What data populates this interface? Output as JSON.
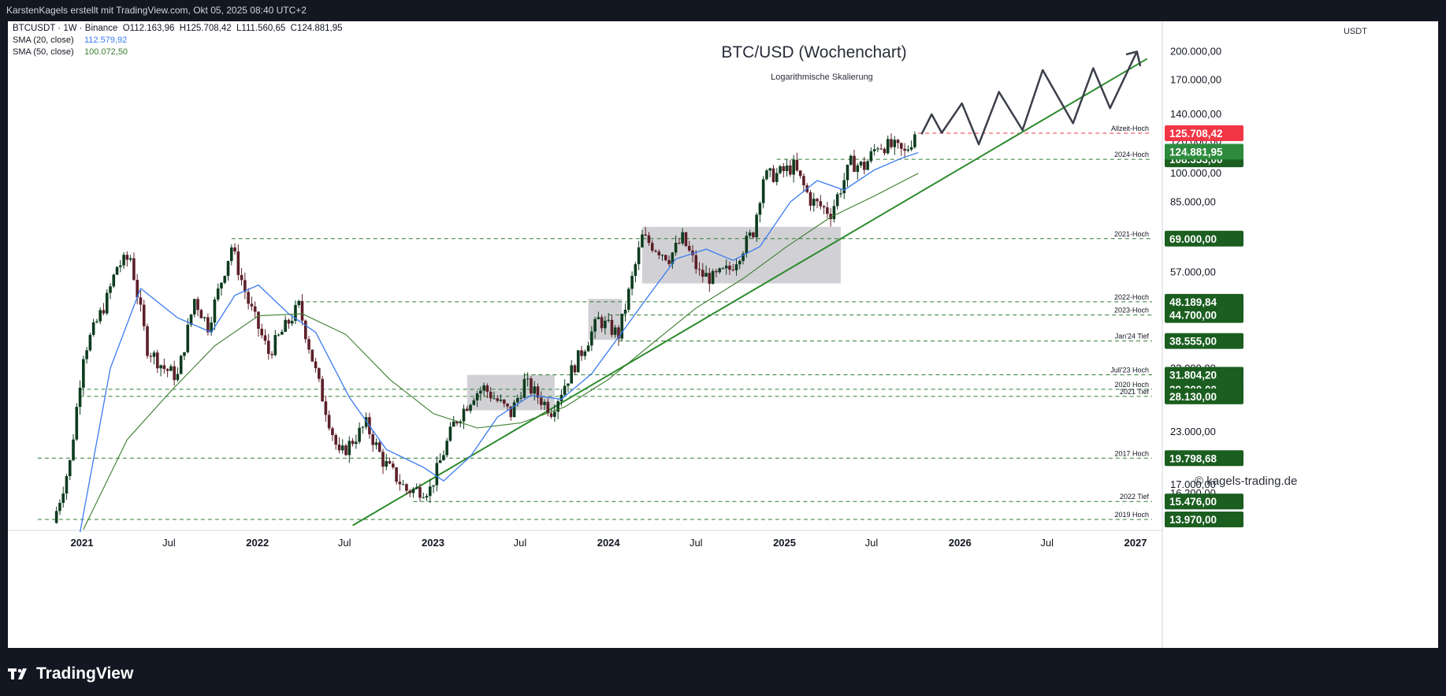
{
  "header": {
    "attribution": "KarstenKagels erstellt mit TradingView.com, Okt 05, 2025 08:40 UTC+2"
  },
  "legend": {
    "symbol_line": "BTCUSDT · 1W · Binance  O112.163,96  H125.708,42  L111.560,65  C124.881,95",
    "sma20_label": "SMA (20, close)",
    "sma20_value": "112.579,92",
    "sma50_label": "SMA (50, close)",
    "sma50_value": "100.072,50"
  },
  "footer": {
    "brand": "TradingView"
  },
  "colors": {
    "bull": "#0d3b1e",
    "bear": "#5c1f28",
    "sma20": "#3a7bf0",
    "sma50": "#3b7d2e",
    "trend": "#2e8b2e",
    "level_line": "#2e7d32",
    "level_box": "#1b5e20",
    "ath_red": "#f23645",
    "last_green": "#2e8b3e",
    "zone": "#c9c9ce",
    "projection": "#3b3f4a"
  },
  "chart_data": {
    "type": "candlestick",
    "title": "BTC/USD (Wochenchart)",
    "subtitle": "Logarithmische Skalierung",
    "scale": "log",
    "currency_label": "USDT",
    "watermark": "© kagels-trading.de",
    "y_ticks": [
      {
        "label": "200.000,00",
        "value": 200000
      },
      {
        "label": "170.000,00",
        "value": 170000
      },
      {
        "label": "140.000,00",
        "value": 140000
      },
      {
        "label": "120.000,00",
        "value": 120000
      },
      {
        "label": "100.000,00",
        "value": 100000
      },
      {
        "label": "85.000,00",
        "value": 85000
      },
      {
        "label": "57.000,00",
        "value": 57000
      },
      {
        "label": "33.000,00",
        "value": 33000
      },
      {
        "label": "23.000,00",
        "value": 23000
      },
      {
        "label": "17.000,00",
        "value": 17000
      },
      {
        "label": "16.200,00",
        "value": 16200
      }
    ],
    "x_ticks": [
      {
        "label": "2021",
        "date": "2021-01-01",
        "bold": true
      },
      {
        "label": "Jul",
        "date": "2021-07-01",
        "bold": false
      },
      {
        "label": "2022",
        "date": "2022-01-01",
        "bold": true
      },
      {
        "label": "Jul",
        "date": "2022-07-01",
        "bold": false
      },
      {
        "label": "2023",
        "date": "2023-01-01",
        "bold": true
      },
      {
        "label": "Jul",
        "date": "2023-07-01",
        "bold": false
      },
      {
        "label": "2024",
        "date": "2024-01-01",
        "bold": true
      },
      {
        "label": "Jul",
        "date": "2024-07-01",
        "bold": false
      },
      {
        "label": "2025",
        "date": "2025-01-01",
        "bold": true
      },
      {
        "label": "Jul",
        "date": "2025-07-01",
        "bold": false
      },
      {
        "label": "2026",
        "date": "2026-01-01",
        "bold": true
      },
      {
        "label": "Jul",
        "date": "2026-07-01",
        "bold": false
      },
      {
        "label": "2027",
        "date": "2027-01-01",
        "bold": true
      }
    ],
    "levels": [
      {
        "label": "Allzeit-Hoch",
        "value": 125708.42,
        "badge": "125.708,42",
        "kind": "ath",
        "start": "2025-10-06"
      },
      {
        "label": "2024-Hoch",
        "value": 108353,
        "badge": "108.353,00",
        "kind": "level",
        "start": "2024-12-16"
      },
      {
        "label": "2021-Hoch",
        "value": 69000,
        "badge": "69.000,00",
        "kind": "level",
        "start": "2021-11-08"
      },
      {
        "label": "2022-Hoch",
        "value": 48189.84,
        "badge": "48.189,84",
        "kind": "level",
        "start": "2022-03-28"
      },
      {
        "label": "2023-Hoch",
        "value": 44700,
        "badge": "44.700,00",
        "kind": "level",
        "start": "2024-01-01"
      },
      {
        "label": "Jan'24 Tief",
        "value": 38555,
        "badge": "38.555,00",
        "kind": "level",
        "start": "2024-01-22"
      },
      {
        "label": "Juli'23 Hoch",
        "value": 31804.2,
        "badge": "31.804,20",
        "kind": "level",
        "start": "2023-07-10"
      },
      {
        "label": "2020 Hoch",
        "value": 29300,
        "badge": "29.300,00",
        "kind": "level",
        "start": "2020-12-28"
      },
      {
        "label": "2021 Tief",
        "value": 28130,
        "badge": "28.130,00",
        "kind": "level",
        "start": "2020-12-28"
      },
      {
        "label": "2017 Hoch",
        "value": 19798.68,
        "badge": "19.798,68",
        "kind": "level",
        "start": "2020-10-01"
      },
      {
        "label": "2022 Tief",
        "value": 15476,
        "badge": "15.476,00",
        "kind": "level",
        "start": "2022-11-21"
      },
      {
        "label": "2019 Hoch",
        "value": 13970,
        "badge": "13.970,00",
        "kind": "level",
        "start": "2020-10-01"
      }
    ],
    "last_price": {
      "value": 124881.95,
      "badge": "124.881,95"
    },
    "zones": [
      {
        "from": "2023-03-13",
        "to": "2023-09-11",
        "low": 26000,
        "high": 31800
      },
      {
        "from": "2023-11-20",
        "to": "2024-01-29",
        "low": 38800,
        "high": 49000
      },
      {
        "from": "2024-03-11",
        "to": "2025-04-28",
        "low": 53500,
        "high": 73800
      }
    ],
    "trendline": {
      "from": {
        "date": "2022-07-18",
        "value": 13500
      },
      "to": {
        "date": "2027-01-25",
        "value": 192000
      }
    },
    "projection": [
      {
        "date": "2025-10-13",
        "value": 125000
      },
      {
        "date": "2025-11-03",
        "value": 140000
      },
      {
        "date": "2025-11-24",
        "value": 126000
      },
      {
        "date": "2026-01-05",
        "value": 149000
      },
      {
        "date": "2026-02-09",
        "value": 118000
      },
      {
        "date": "2026-03-23",
        "value": 159000
      },
      {
        "date": "2026-05-11",
        "value": 128000
      },
      {
        "date": "2026-06-22",
        "value": 180000
      },
      {
        "date": "2026-08-24",
        "value": 133000
      },
      {
        "date": "2026-10-05",
        "value": 182000
      },
      {
        "date": "2026-11-09",
        "value": 145000
      },
      {
        "date": "2027-01-04",
        "value": 200000
      },
      {
        "date": "2026-12-14",
        "value": 197000
      },
      {
        "date": "2027-01-04",
        "value": 200000
      },
      {
        "date": "2027-01-11",
        "value": 184000
      }
    ],
    "price_path": [
      {
        "date": "2020-11-02",
        "value": 13700
      },
      {
        "date": "2020-12-07",
        "value": 19300
      },
      {
        "date": "2021-01-04",
        "value": 36000
      },
      {
        "date": "2021-02-22",
        "value": 49000
      },
      {
        "date": "2021-03-15",
        "value": 59000
      },
      {
        "date": "2021-04-12",
        "value": 62000
      },
      {
        "date": "2021-05-17",
        "value": 37000
      },
      {
        "date": "2021-06-21",
        "value": 33000
      },
      {
        "date": "2021-07-19",
        "value": 31500
      },
      {
        "date": "2021-08-23",
        "value": 49000
      },
      {
        "date": "2021-09-20",
        "value": 42000
      },
      {
        "date": "2021-11-08",
        "value": 66000
      },
      {
        "date": "2021-12-13",
        "value": 48000
      },
      {
        "date": "2022-01-24",
        "value": 36000
      },
      {
        "date": "2022-03-28",
        "value": 47000
      },
      {
        "date": "2022-05-09",
        "value": 30000
      },
      {
        "date": "2022-06-20",
        "value": 20000
      },
      {
        "date": "2022-08-15",
        "value": 24000
      },
      {
        "date": "2022-09-19",
        "value": 19500
      },
      {
        "date": "2022-11-07",
        "value": 16500
      },
      {
        "date": "2022-12-26",
        "value": 16600
      },
      {
        "date": "2023-02-13",
        "value": 24000
      },
      {
        "date": "2023-03-27",
        "value": 28500
      },
      {
        "date": "2023-04-17",
        "value": 29500
      },
      {
        "date": "2023-06-12",
        "value": 25500
      },
      {
        "date": "2023-07-10",
        "value": 30500
      },
      {
        "date": "2023-09-04",
        "value": 26000
      },
      {
        "date": "2023-10-30",
        "value": 35000
      },
      {
        "date": "2023-12-11",
        "value": 43500
      },
      {
        "date": "2024-01-22",
        "value": 40000
      },
      {
        "date": "2024-03-11",
        "value": 69500
      },
      {
        "date": "2024-05-06",
        "value": 62000
      },
      {
        "date": "2024-06-03",
        "value": 69000
      },
      {
        "date": "2024-07-08",
        "value": 56500
      },
      {
        "date": "2024-08-05",
        "value": 55000
      },
      {
        "date": "2024-09-09",
        "value": 58000
      },
      {
        "date": "2024-10-28",
        "value": 72000
      },
      {
        "date": "2024-11-18",
        "value": 98000
      },
      {
        "date": "2024-12-16",
        "value": 99500
      },
      {
        "date": "2025-01-20",
        "value": 104000
      },
      {
        "date": "2025-02-24",
        "value": 86000
      },
      {
        "date": "2025-04-07",
        "value": 80000
      },
      {
        "date": "2025-05-19",
        "value": 106000
      },
      {
        "date": "2025-06-16",
        "value": 104000
      },
      {
        "date": "2025-07-14",
        "value": 118000
      },
      {
        "date": "2025-08-18",
        "value": 116000
      },
      {
        "date": "2025-09-08",
        "value": 112000
      },
      {
        "date": "2025-09-29",
        "value": 124881.95
      }
    ],
    "sma20_path": [
      {
        "date": "2020-12-28",
        "value": 13000
      },
      {
        "date": "2021-03-01",
        "value": 33000
      },
      {
        "date": "2021-05-03",
        "value": 52000
      },
      {
        "date": "2021-07-19",
        "value": 44000
      },
      {
        "date": "2021-09-27",
        "value": 40500
      },
      {
        "date": "2021-11-15",
        "value": 50000
      },
      {
        "date": "2022-01-03",
        "value": 53000
      },
      {
        "date": "2022-03-07",
        "value": 45000
      },
      {
        "date": "2022-05-02",
        "value": 40500
      },
      {
        "date": "2022-07-11",
        "value": 28000
      },
      {
        "date": "2022-09-26",
        "value": 20800
      },
      {
        "date": "2022-12-12",
        "value": 18800
      },
      {
        "date": "2023-01-23",
        "value": 17400
      },
      {
        "date": "2023-03-20",
        "value": 20000
      },
      {
        "date": "2023-05-15",
        "value": 25000
      },
      {
        "date": "2023-07-24",
        "value": 28300
      },
      {
        "date": "2023-09-25",
        "value": 27700
      },
      {
        "date": "2023-11-27",
        "value": 32000
      },
      {
        "date": "2024-01-29",
        "value": 40500
      },
      {
        "date": "2024-03-25",
        "value": 50000
      },
      {
        "date": "2024-05-20",
        "value": 61500
      },
      {
        "date": "2024-07-22",
        "value": 65000
      },
      {
        "date": "2024-09-16",
        "value": 61000
      },
      {
        "date": "2024-11-11",
        "value": 66000
      },
      {
        "date": "2025-01-13",
        "value": 85000
      },
      {
        "date": "2025-03-10",
        "value": 96000
      },
      {
        "date": "2025-05-05",
        "value": 91000
      },
      {
        "date": "2025-07-07",
        "value": 102000
      },
      {
        "date": "2025-09-01",
        "value": 109000
      },
      {
        "date": "2025-10-06",
        "value": 112579.92
      }
    ],
    "sma50_path": [
      {
        "date": "2021-01-04",
        "value": 13200
      },
      {
        "date": "2021-04-05",
        "value": 22000
      },
      {
        "date": "2021-07-05",
        "value": 29000
      },
      {
        "date": "2021-10-04",
        "value": 37500
      },
      {
        "date": "2022-01-03",
        "value": 44500
      },
      {
        "date": "2022-04-04",
        "value": 45000
      },
      {
        "date": "2022-07-04",
        "value": 40000
      },
      {
        "date": "2022-10-03",
        "value": 31000
      },
      {
        "date": "2023-01-02",
        "value": 25500
      },
      {
        "date": "2023-04-03",
        "value": 23500
      },
      {
        "date": "2023-07-03",
        "value": 24200
      },
      {
        "date": "2023-10-02",
        "value": 26500
      },
      {
        "date": "2024-01-01",
        "value": 31000
      },
      {
        "date": "2024-04-01",
        "value": 38000
      },
      {
        "date": "2024-07-01",
        "value": 46500
      },
      {
        "date": "2024-10-07",
        "value": 55000
      },
      {
        "date": "2025-01-06",
        "value": 66000
      },
      {
        "date": "2025-04-07",
        "value": 78000
      },
      {
        "date": "2025-07-07",
        "value": 88000
      },
      {
        "date": "2025-10-06",
        "value": 100072.5
      }
    ]
  }
}
